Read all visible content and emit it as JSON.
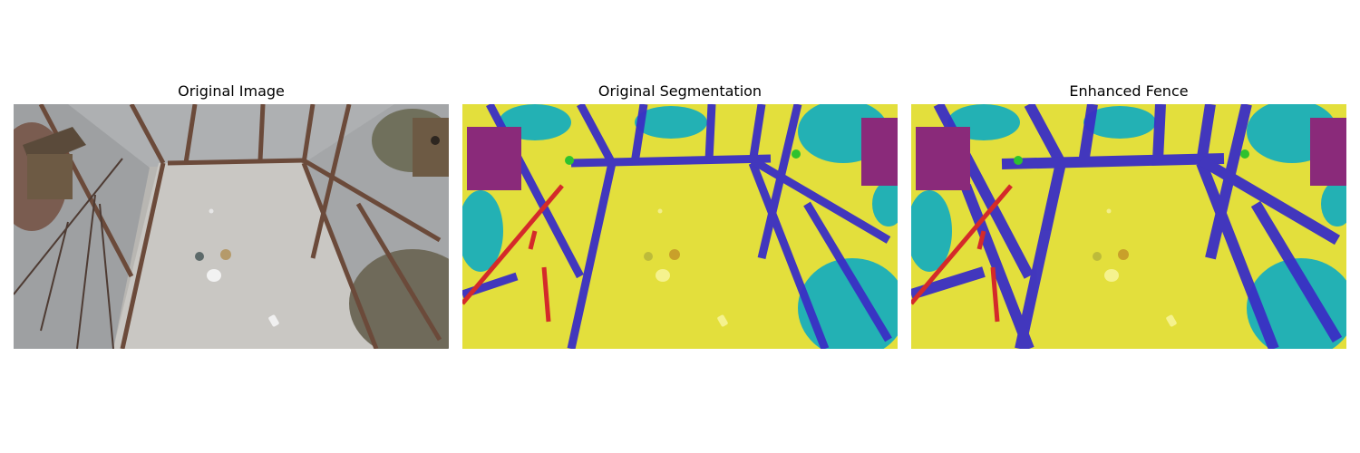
{
  "figure": {
    "panels": [
      {
        "title": "Original Image"
      },
      {
        "title": "Original Segmentation"
      },
      {
        "title": "Enhanced Fence"
      }
    ]
  },
  "colors": {
    "background": "#ffffff",
    "photo_floor": "#c9c7c3",
    "photo_frame": "#6b4a3a",
    "photo_mesh": "#9a9c9e",
    "photo_foliage": "#6f6a5a",
    "photo_birdhouse": "#6d5a44",
    "seg_floor": "#e3df3c",
    "seg_fence": "#3a2fc4",
    "seg_vegetation": "#23b1b4",
    "seg_birdhouse": "#8a2a7a",
    "seg_branch": "#d42a2a",
    "seg_small_object": "#2ec22e"
  }
}
